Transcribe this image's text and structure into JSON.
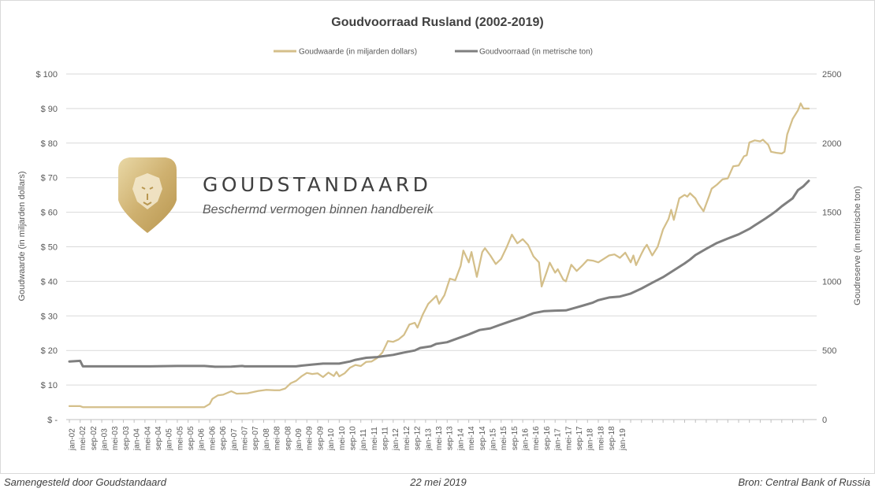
{
  "chart_data": {
    "type": "line",
    "title": "Goudvoorraad Rusland (2002-2019)",
    "legend_position": "top",
    "grid": "horizontal",
    "y_left": {
      "label": "Goudwaarde (in miljarden dollars)",
      "range": [
        0,
        100
      ],
      "tick_labels": [
        "$ -",
        "$ 10",
        "$ 20",
        "$ 30",
        "$ 40",
        "$ 50",
        "$ 60",
        "$ 70",
        "$ 80",
        "$ 90",
        "$ 100"
      ]
    },
    "y_right": {
      "label": "Goudreserve (in metrische ton)",
      "range": [
        0,
        2500
      ],
      "tick_labels": [
        "0",
        "500",
        "1000",
        "1500",
        "2000",
        "2500"
      ]
    },
    "x_tick_labels": [
      "jan-02",
      "mei-02",
      "sep-02",
      "jan-03",
      "mei-03",
      "sep-03",
      "jan-04",
      "mei-04",
      "sep-04",
      "jan-05",
      "mei-05",
      "sep-05",
      "jan-06",
      "mei-06",
      "sep-06",
      "jan-07",
      "mei-07",
      "sep-07",
      "jan-08",
      "mei-08",
      "sep-08",
      "jan-09",
      "mei-09",
      "sep-09",
      "jan-10",
      "mei-10",
      "sep-10",
      "jan-11",
      "mei-11",
      "sep-11",
      "jan-12",
      "mei-12",
      "sep-12",
      "jan-13",
      "mei-13",
      "sep-13",
      "jan-14",
      "mei-14",
      "sep-14",
      "jan-15",
      "mei-15",
      "sep-15",
      "jan-16",
      "mei-16",
      "sep-16",
      "jan-17",
      "mei-17",
      "sep-17",
      "jan-18",
      "mei-18",
      "sep-18",
      "jan-19"
    ],
    "series": [
      {
        "name": "Goudwaarde (in miljarden dollars)",
        "axis": "left",
        "color": "#d4bf8a",
        "points": [
          [
            0,
            3.9
          ],
          [
            4,
            3.9
          ],
          [
            5,
            3.6
          ],
          [
            10,
            3.6
          ],
          [
            20,
            3.6
          ],
          [
            30,
            3.6
          ],
          [
            40,
            3.6
          ],
          [
            50,
            3.6
          ],
          [
            52,
            4.5
          ],
          [
            53,
            6.0
          ],
          [
            55,
            7.0
          ],
          [
            57,
            7.2
          ],
          [
            60,
            8.2
          ],
          [
            62,
            7.5
          ],
          [
            66,
            7.6
          ],
          [
            70,
            8.3
          ],
          [
            73,
            8.6
          ],
          [
            76,
            8.5
          ],
          [
            78,
            8.5
          ],
          [
            80,
            9.0
          ],
          [
            82,
            10.5
          ],
          [
            84,
            11.2
          ],
          [
            86,
            12.5
          ],
          [
            88,
            13.5
          ],
          [
            90,
            13.2
          ],
          [
            92,
            13.4
          ],
          [
            94,
            12.3
          ],
          [
            96,
            13.6
          ],
          [
            98,
            12.6
          ],
          [
            99,
            13.8
          ],
          [
            100,
            12.5
          ],
          [
            102,
            13.4
          ],
          [
            104,
            15.0
          ],
          [
            106,
            15.8
          ],
          [
            108,
            15.5
          ],
          [
            110,
            16.7
          ],
          [
            112,
            16.8
          ],
          [
            114,
            17.8
          ],
          [
            116,
            19.4
          ],
          [
            118,
            22.7
          ],
          [
            120,
            22.5
          ],
          [
            122,
            23.2
          ],
          [
            124,
            24.5
          ],
          [
            126,
            27.5
          ],
          [
            128,
            28.0
          ],
          [
            129,
            26.6
          ],
          [
            131,
            30.5
          ],
          [
            133,
            33.5
          ],
          [
            136,
            35.8
          ],
          [
            137,
            33.5
          ],
          [
            139,
            36.0
          ],
          [
            141,
            40.8
          ],
          [
            143,
            40.3
          ],
          [
            145,
            44.5
          ],
          [
            146,
            48.9
          ],
          [
            148,
            45.5
          ],
          [
            149,
            48.5
          ],
          [
            151,
            41.3
          ],
          [
            153,
            48.5
          ],
          [
            154,
            49.6
          ],
          [
            156,
            47.5
          ],
          [
            158,
            45.0
          ],
          [
            160,
            46.5
          ],
          [
            162,
            49.8
          ],
          [
            164,
            53.5
          ],
          [
            166,
            51.0
          ],
          [
            168,
            52.2
          ],
          [
            170,
            50.5
          ],
          [
            172,
            47.2
          ],
          [
            174,
            45.5
          ],
          [
            175,
            38.5
          ],
          [
            177,
            43.0
          ],
          [
            178,
            45.4
          ],
          [
            180,
            42.5
          ],
          [
            181,
            43.5
          ],
          [
            183,
            40.5
          ],
          [
            184,
            40.0
          ],
          [
            186,
            44.8
          ],
          [
            188,
            43.0
          ],
          [
            190,
            44.5
          ],
          [
            192,
            46.2
          ],
          [
            194,
            46.0
          ],
          [
            196,
            45.5
          ],
          [
            198,
            46.5
          ],
          [
            200,
            47.5
          ],
          [
            202,
            47.8
          ],
          [
            204,
            46.8
          ],
          [
            206,
            48.3
          ],
          [
            208,
            45.5
          ],
          [
            209,
            47.5
          ],
          [
            210,
            44.7
          ],
          [
            212,
            48.0
          ],
          [
            213,
            49.5
          ],
          [
            214,
            50.6
          ],
          [
            216,
            47.5
          ],
          [
            218,
            50.0
          ],
          [
            220,
            55.0
          ],
          [
            222,
            58.0
          ],
          [
            223,
            60.7
          ],
          [
            224,
            57.8
          ],
          [
            226,
            64.0
          ],
          [
            228,
            65.0
          ],
          [
            229,
            64.5
          ],
          [
            230,
            65.5
          ],
          [
            232,
            64.0
          ],
          [
            233,
            62.5
          ],
          [
            235,
            60.3
          ],
          [
            237,
            64.5
          ],
          [
            238,
            66.8
          ],
          [
            240,
            68.0
          ],
          [
            242,
            69.5
          ],
          [
            244,
            69.8
          ],
          [
            246,
            73.3
          ],
          [
            248,
            73.5
          ],
          [
            250,
            76.2
          ],
          [
            251,
            76.5
          ],
          [
            252,
            80.2
          ],
          [
            254,
            80.8
          ],
          [
            256,
            80.5
          ],
          [
            257,
            81.0
          ],
          [
            259,
            79.5
          ],
          [
            260,
            77.5
          ],
          [
            262,
            77.2
          ],
          [
            264,
            77.0
          ],
          [
            265,
            77.5
          ],
          [
            266,
            82.5
          ],
          [
            268,
            87.0
          ],
          [
            270,
            89.5
          ],
          [
            271,
            91.5
          ],
          [
            272,
            90.0
          ],
          [
            274,
            90.0
          ]
        ]
      },
      {
        "name": "Goudvoorraad (in metrische ton)",
        "axis": "right",
        "color": "#7f7f7f",
        "points": [
          [
            0,
            420
          ],
          [
            4,
            425
          ],
          [
            5,
            385
          ],
          [
            20,
            385
          ],
          [
            30,
            385
          ],
          [
            40,
            388
          ],
          [
            50,
            388
          ],
          [
            54,
            382
          ],
          [
            60,
            383
          ],
          [
            64,
            388
          ],
          [
            65,
            385
          ],
          [
            70,
            385
          ],
          [
            80,
            385
          ],
          [
            84,
            385
          ],
          [
            86,
            390
          ],
          [
            90,
            398
          ],
          [
            94,
            405
          ],
          [
            100,
            405
          ],
          [
            104,
            420
          ],
          [
            106,
            432
          ],
          [
            110,
            447
          ],
          [
            114,
            452
          ],
          [
            116,
            458
          ],
          [
            120,
            468
          ],
          [
            124,
            485
          ],
          [
            128,
            500
          ],
          [
            130,
            518
          ],
          [
            134,
            530
          ],
          [
            136,
            548
          ],
          [
            140,
            560
          ],
          [
            144,
            588
          ],
          [
            148,
            616
          ],
          [
            152,
            648
          ],
          [
            156,
            660
          ],
          [
            160,
            688
          ],
          [
            164,
            715
          ],
          [
            168,
            740
          ],
          [
            172,
            770
          ],
          [
            176,
            785
          ],
          [
            180,
            788
          ],
          [
            184,
            790
          ],
          [
            188,
            812
          ],
          [
            190,
            823
          ],
          [
            194,
            846
          ],
          [
            196,
            864
          ],
          [
            200,
            883
          ],
          [
            204,
            890
          ],
          [
            208,
            912
          ],
          [
            212,
            948
          ],
          [
            216,
            990
          ],
          [
            220,
            1030
          ],
          [
            224,
            1080
          ],
          [
            228,
            1130
          ],
          [
            230,
            1158
          ],
          [
            232,
            1190
          ],
          [
            236,
            1235
          ],
          [
            240,
            1278
          ],
          [
            244,
            1310
          ],
          [
            248,
            1340
          ],
          [
            252,
            1380
          ],
          [
            254,
            1405
          ],
          [
            256,
            1430
          ],
          [
            258,
            1455
          ],
          [
            260,
            1482
          ],
          [
            262,
            1510
          ],
          [
            264,
            1543
          ],
          [
            266,
            1572
          ],
          [
            268,
            1600
          ],
          [
            270,
            1660
          ],
          [
            272,
            1688
          ],
          [
            274,
            1727
          ]
        ]
      }
    ]
  },
  "logo": {
    "name": "GOUDSTANDAARD",
    "tagline": "Beschermd vermogen binnen handbereik"
  },
  "footer": {
    "left": "Samengesteld door Goudstandaard",
    "center": "22 mei 2019",
    "right": "Bron: Central Bank of Russia"
  }
}
